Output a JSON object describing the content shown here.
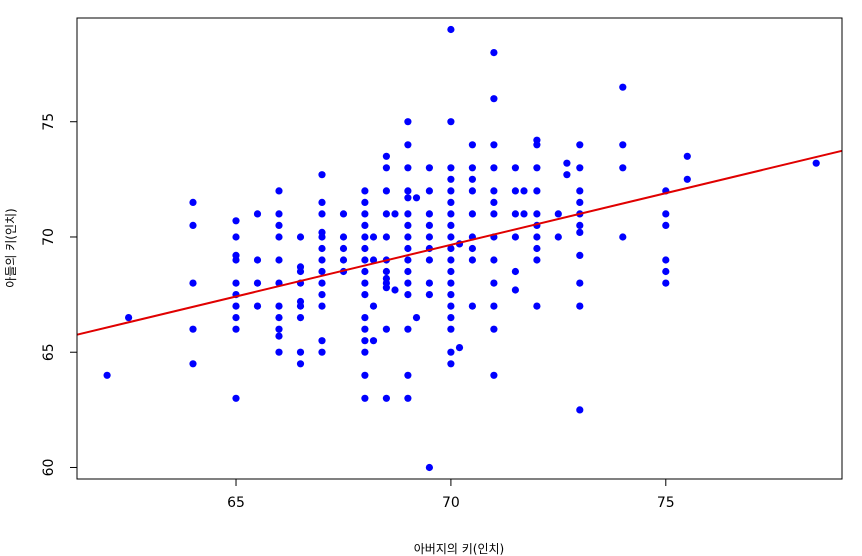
{
  "chart_data": {
    "type": "scatter",
    "title": "",
    "xlabel": "아버지의 키(인치)",
    "ylabel": "아들의 키(인치)",
    "xlim": [
      61.3,
      79.1
    ],
    "ylim": [
      59.5,
      79.5
    ],
    "xticks": [
      65,
      70,
      75
    ],
    "yticks": [
      60,
      65,
      70,
      75
    ],
    "grid": false,
    "point_color": "#0000ff",
    "line_color": "#e00000",
    "regression_line": {
      "intercept": 38.3,
      "slope": 0.448
    },
    "series": [
      {
        "values": [
          [
            62,
            64
          ],
          [
            62.5,
            66.5
          ],
          [
            64,
            71.5
          ],
          [
            64,
            70.5
          ],
          [
            64,
            68
          ],
          [
            64,
            66
          ],
          [
            64,
            64.5
          ],
          [
            65,
            70.7
          ],
          [
            65,
            70
          ],
          [
            65,
            69.2
          ],
          [
            65,
            69
          ],
          [
            65,
            68
          ],
          [
            65,
            67.5
          ],
          [
            65,
            67
          ],
          [
            65,
            66.5
          ],
          [
            65,
            66
          ],
          [
            65,
            63
          ],
          [
            65.5,
            71
          ],
          [
            65.5,
            69
          ],
          [
            65.5,
            68
          ],
          [
            65.5,
            67
          ],
          [
            66,
            72
          ],
          [
            66,
            71
          ],
          [
            66,
            70.5
          ],
          [
            66,
            70
          ],
          [
            66,
            69
          ],
          [
            66,
            68
          ],
          [
            66,
            67
          ],
          [
            66,
            66.5
          ],
          [
            66,
            66
          ],
          [
            66,
            65.7
          ],
          [
            66,
            65
          ],
          [
            66.5,
            70
          ],
          [
            66.5,
            68.7
          ],
          [
            66.5,
            68.5
          ],
          [
            66.5,
            68
          ],
          [
            66.5,
            67.2
          ],
          [
            66.5,
            67
          ],
          [
            66.5,
            66.5
          ],
          [
            66.5,
            65
          ],
          [
            66.5,
            64.5
          ],
          [
            67,
            72.7
          ],
          [
            67,
            71.5
          ],
          [
            67,
            71
          ],
          [
            67,
            70.2
          ],
          [
            67,
            70
          ],
          [
            67,
            69.5
          ],
          [
            67,
            69
          ],
          [
            67,
            68.5
          ],
          [
            67,
            68
          ],
          [
            67,
            67.5
          ],
          [
            67,
            67
          ],
          [
            67,
            65.5
          ],
          [
            67,
            65
          ],
          [
            67.5,
            71
          ],
          [
            67.5,
            70
          ],
          [
            67.5,
            69.5
          ],
          [
            67.5,
            69
          ],
          [
            67.5,
            68.5
          ],
          [
            68,
            72
          ],
          [
            68,
            71.5
          ],
          [
            68,
            71
          ],
          [
            68,
            70.5
          ],
          [
            68,
            70
          ],
          [
            68,
            69.5
          ],
          [
            68,
            69
          ],
          [
            68,
            68.5
          ],
          [
            68,
            68
          ],
          [
            68,
            67.5
          ],
          [
            68,
            66.5
          ],
          [
            68,
            66
          ],
          [
            68,
            65.5
          ],
          [
            68,
            65
          ],
          [
            68,
            64
          ],
          [
            68,
            63
          ],
          [
            68.2,
            70
          ],
          [
            68.2,
            69
          ],
          [
            68.2,
            67
          ],
          [
            68.2,
            65.5
          ],
          [
            68.5,
            73.5
          ],
          [
            68.5,
            73
          ],
          [
            68.5,
            72
          ],
          [
            68.5,
            71
          ],
          [
            68.5,
            70
          ],
          [
            68.5,
            69
          ],
          [
            68.5,
            68.5
          ],
          [
            68.5,
            68.2
          ],
          [
            68.5,
            68
          ],
          [
            68.5,
            67.8
          ],
          [
            68.5,
            66
          ],
          [
            68.5,
            63
          ],
          [
            68.7,
            71
          ],
          [
            68.7,
            67.7
          ],
          [
            69,
            75
          ],
          [
            69,
            74
          ],
          [
            69,
            73
          ],
          [
            69,
            72
          ],
          [
            69,
            71.7
          ],
          [
            69,
            71
          ],
          [
            69,
            70.5
          ],
          [
            69,
            70
          ],
          [
            69,
            69.5
          ],
          [
            69,
            69
          ],
          [
            69,
            68.5
          ],
          [
            69,
            68
          ],
          [
            69,
            67.5
          ],
          [
            69,
            66
          ],
          [
            69,
            64
          ],
          [
            69,
            63
          ],
          [
            69.2,
            71.7
          ],
          [
            69.2,
            66.5
          ],
          [
            69.5,
            73
          ],
          [
            69.5,
            72
          ],
          [
            69.5,
            71
          ],
          [
            69.5,
            70.5
          ],
          [
            69.5,
            70
          ],
          [
            69.5,
            69.5
          ],
          [
            69.5,
            69
          ],
          [
            69.5,
            68
          ],
          [
            69.5,
            67.5
          ],
          [
            69.5,
            60
          ],
          [
            70,
            79
          ],
          [
            70,
            75
          ],
          [
            70,
            73
          ],
          [
            70,
            72.5
          ],
          [
            70,
            72
          ],
          [
            70,
            71.5
          ],
          [
            70,
            71
          ],
          [
            70,
            70.5
          ],
          [
            70,
            70
          ],
          [
            70,
            69.5
          ],
          [
            70,
            69
          ],
          [
            70,
            68.5
          ],
          [
            70,
            68
          ],
          [
            70,
            67.5
          ],
          [
            70,
            67
          ],
          [
            70,
            66.5
          ],
          [
            70,
            66
          ],
          [
            70,
            65
          ],
          [
            70,
            64.5
          ],
          [
            70.2,
            69.7
          ],
          [
            70.2,
            65.2
          ],
          [
            70.5,
            74
          ],
          [
            70.5,
            73
          ],
          [
            70.5,
            72.5
          ],
          [
            70.5,
            72
          ],
          [
            70.5,
            71
          ],
          [
            70.5,
            70
          ],
          [
            70.5,
            69.5
          ],
          [
            70.5,
            69
          ],
          [
            70.5,
            67
          ],
          [
            71,
            78
          ],
          [
            71,
            76
          ],
          [
            71,
            74
          ],
          [
            71,
            73
          ],
          [
            71,
            72
          ],
          [
            71,
            71.5
          ],
          [
            71,
            71
          ],
          [
            71,
            70
          ],
          [
            71,
            69
          ],
          [
            71,
            68
          ],
          [
            71,
            67
          ],
          [
            71,
            66
          ],
          [
            71,
            64
          ],
          [
            71.5,
            73
          ],
          [
            71.5,
            72
          ],
          [
            71.5,
            71
          ],
          [
            71.5,
            70
          ],
          [
            71.5,
            68.5
          ],
          [
            71.5,
            67.7
          ],
          [
            71.7,
            72
          ],
          [
            71.7,
            71
          ],
          [
            72,
            74.2
          ],
          [
            72,
            74
          ],
          [
            72,
            73
          ],
          [
            72,
            72
          ],
          [
            72,
            71
          ],
          [
            72,
            70.5
          ],
          [
            72,
            70
          ],
          [
            72,
            69.5
          ],
          [
            72,
            69
          ],
          [
            72,
            67
          ],
          [
            72.5,
            71
          ],
          [
            72.5,
            70
          ],
          [
            72.7,
            73.2
          ],
          [
            72.7,
            72.7
          ],
          [
            73,
            74
          ],
          [
            73,
            73
          ],
          [
            73,
            72
          ],
          [
            73,
            71.5
          ],
          [
            73,
            71
          ],
          [
            73,
            70.5
          ],
          [
            73,
            70.2
          ],
          [
            73,
            69.2
          ],
          [
            73,
            68
          ],
          [
            73,
            67
          ],
          [
            73,
            62.5
          ],
          [
            74,
            76.5
          ],
          [
            74,
            74
          ],
          [
            74,
            73
          ],
          [
            74,
            70
          ],
          [
            75,
            72
          ],
          [
            75,
            71
          ],
          [
            75,
            70.5
          ],
          [
            75,
            69
          ],
          [
            75,
            68.5
          ],
          [
            75,
            68
          ],
          [
            75.5,
            73.5
          ],
          [
            75.5,
            72.5
          ],
          [
            78.5,
            73.2
          ]
        ]
      }
    ]
  }
}
